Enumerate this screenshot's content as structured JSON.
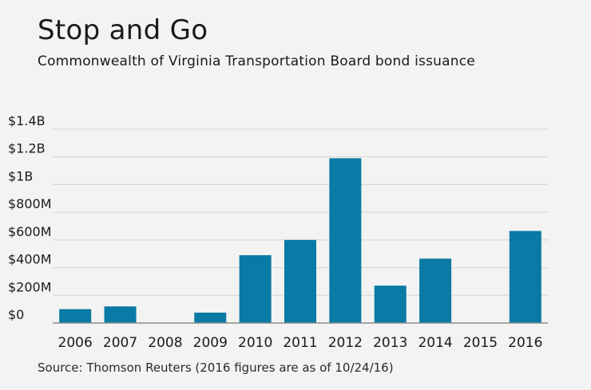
{
  "header": {
    "title": "Stop and Go",
    "subtitle": "Commonwealth of Virginia Transportation Board bond issuance"
  },
  "footer": {
    "source": "Source: Thomson Reuters (2016 figures are as of 10/24/16)"
  },
  "colors": {
    "bar": "#0a7aa6",
    "grid": "#d2d4d2",
    "axis": "#8a8c8a"
  },
  "chart_data": {
    "type": "bar",
    "title": "Stop and Go",
    "subtitle": "Commonwealth of Virginia Transportation Board bond issuance",
    "xlabel": "",
    "ylabel": "",
    "categories": [
      "2006",
      "2007",
      "2008",
      "2009",
      "2010",
      "2011",
      "2012",
      "2013",
      "2014",
      "2015",
      "2016"
    ],
    "values": [
      100,
      120,
      0,
      75,
      490,
      600,
      1190,
      270,
      465,
      0,
      665
    ],
    "value_unit": "millions of dollars",
    "ylim": [
      0,
      1400
    ],
    "yticks": [
      0,
      200,
      400,
      600,
      800,
      1000,
      1200,
      1400
    ],
    "ytick_labels": [
      "$0",
      "$200M",
      "$400M",
      "$600M",
      "$800M",
      "$1B",
      "$1.2B",
      "$1.4B"
    ],
    "grid": true,
    "legend": "none"
  }
}
